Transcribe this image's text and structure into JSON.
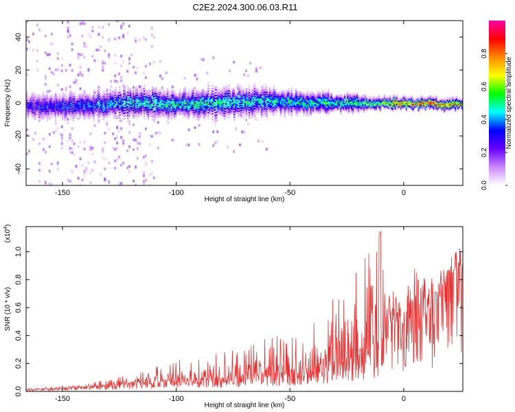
{
  "figure": {
    "title": "C2E2.2024.300.06.03.R11"
  },
  "chart_data": [
    {
      "type": "heatmap",
      "title": "C2E2.2024.300.06.03.R11",
      "xlabel": "Height of straight line (km)",
      "ylabel": "Frequency (Hz)",
      "xlim": [
        -166,
        26
      ],
      "ylim": [
        -50,
        50
      ],
      "xticks": [
        -150,
        -100,
        -50,
        0
      ],
      "xticklabels": [
        "-150",
        "-100",
        "-50",
        "0"
      ],
      "yticks": [
        -40,
        -20,
        0,
        20,
        40
      ],
      "yticklabels": [
        "-40",
        "-20",
        "0",
        "20",
        "40"
      ],
      "colorbar": {
        "label": "Normalized spectral amplitude",
        "range": [
          0,
          1
        ],
        "ticks": [
          0,
          0.2,
          0.4,
          0.6,
          0.8
        ],
        "ticklabels": [
          "0.0",
          "0.2",
          "0.4",
          "0.6",
          "0.8"
        ],
        "colors": [
          "#ffffff",
          "#cc88ff",
          "#6600ff",
          "#0000ff",
          "#00ffff",
          "#00ff00",
          "#ffff00",
          "#ff8800",
          "#ff0000",
          "#ff00aa"
        ]
      },
      "band": {
        "x": [
          -166,
          -150,
          -120,
          -100,
          -80,
          -60,
          -40,
          -20,
          -10,
          0,
          10,
          20,
          26
        ],
        "center_freq_hz": [
          -2,
          -2,
          0,
          -1,
          0,
          1,
          0,
          0,
          0,
          0,
          0,
          -1,
          0
        ],
        "halfwidth_hz": [
          5,
          5,
          6,
          5,
          6,
          5,
          4,
          3,
          2,
          2,
          2,
          2,
          2
        ],
        "peak_amplitude": [
          0.3,
          0.35,
          0.45,
          0.5,
          0.5,
          0.5,
          0.5,
          0.55,
          0.65,
          0.9,
          0.9,
          0.85,
          0.85
        ]
      },
      "grid": false
    },
    {
      "type": "line",
      "xlabel": "Height of straight line (km)",
      "ylabel": "SNR (10 * v/v)",
      "y_multiplier": "(x10",
      "y_multiplier_exp": "4",
      "y_multiplier_close": ")",
      "xlim": [
        -166,
        26
      ],
      "ylim": [
        0,
        1.18
      ],
      "xticks": [
        -150,
        -100,
        -50,
        0
      ],
      "xticklabels": [
        "-150",
        "-100",
        "-50",
        "0"
      ],
      "yticks": [
        0,
        0.2,
        0.4,
        0.6,
        0.8,
        1.0
      ],
      "yticklabels": [
        "0.0",
        "0.2",
        "0.4",
        "0.6",
        "0.8",
        "1.0"
      ],
      "series": [
        {
          "color": "#e83030",
          "envelope": {
            "x": [
              -166,
              -150,
              -135,
              -120,
              -110,
              -100,
              -90,
              -80,
              -70,
              -60,
              -50,
              -40,
              -30,
              -20,
              -15,
              -10,
              -8,
              -5,
              0,
              2,
              5,
              8,
              10,
              13,
              16,
              20,
              25,
              26
            ],
            "base": [
              0.01,
              0.02,
              0.03,
              0.05,
              0.06,
              0.07,
              0.08,
              0.09,
              0.1,
              0.11,
              0.13,
              0.16,
              0.2,
              0.25,
              0.28,
              0.3,
              0.45,
              0.5,
              0.48,
              0.6,
              0.65,
              0.7,
              0.6,
              0.55,
              0.7,
              0.8,
              0.88,
              0.9
            ],
            "peak": [
              0.02,
              0.04,
              0.07,
              0.12,
              0.18,
              0.22,
              0.28,
              0.3,
              0.32,
              0.38,
              0.42,
              0.5,
              0.7,
              0.9,
              1.0,
              1.15,
              0.78,
              0.72,
              0.7,
              0.85,
              0.9,
              0.95,
              0.8,
              0.82,
              0.9,
              0.98,
              1.05,
              1.0
            ]
          }
        }
      ],
      "grid": false
    }
  ]
}
